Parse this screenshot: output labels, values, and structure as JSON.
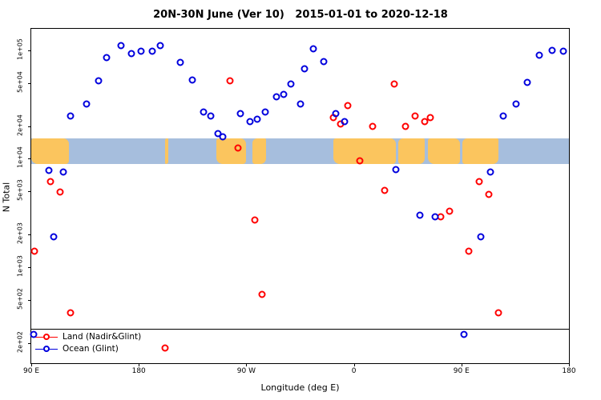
{
  "title": "20N-30N June (Ver 10)   2015-01-01 to 2020-12-18",
  "axes": {
    "x_label": "Longitude (deg E)",
    "y_label": "N Total"
  },
  "legend": {
    "items": [
      {
        "id": "land",
        "label": "Land (Nadir&Glint)",
        "color": "#ff0000"
      },
      {
        "id": "ocean",
        "label": "Ocean (Glint)",
        "color": "#0000dd"
      }
    ]
  },
  "chart_data": {
    "type": "scatter",
    "title": "20N-30N June (Ver 10)   2015-01-01 to 2020-12-18",
    "xlabel": "Longitude (deg E)",
    "ylabel": "N Total",
    "x_axis": {
      "range": [
        0,
        450
      ],
      "note": "degrees eastward along wrapped longitude axis starting at 90 E",
      "ticks": [
        {
          "pos": 0,
          "label": "90 E"
        },
        {
          "pos": 90,
          "label": "180"
        },
        {
          "pos": 180,
          "label": "90 W"
        },
        {
          "pos": 270,
          "label": "0"
        },
        {
          "pos": 360,
          "label": "90 E"
        },
        {
          "pos": 450,
          "label": "180"
        }
      ]
    },
    "y_axis": {
      "scale": "log",
      "range": [
        130,
        158000
      ],
      "ticks": [
        {
          "value": 100000,
          "label": "1e+05"
        },
        {
          "value": 50000,
          "label": "5e+04"
        },
        {
          "value": 20000,
          "label": "2e+04"
        },
        {
          "value": 10000,
          "label": "1e+04"
        },
        {
          "value": 5000,
          "label": "5e+03"
        },
        {
          "value": 2000,
          "label": "2e+03"
        },
        {
          "value": 1000,
          "label": "1e+03"
        },
        {
          "value": 500,
          "label": "5e+02"
        },
        {
          "value": 200,
          "label": "2e+02"
        }
      ]
    },
    "reference_line_y": 270,
    "map_band": {
      "y_range": [
        8900,
        15500
      ],
      "ocean_color": "#a6bedd",
      "land_color": "#fbc55e",
      "land_segments": [
        [
          0,
          7.0
        ],
        [
          24.9,
          25.5
        ],
        [
          34.4,
          40.0
        ],
        [
          41.2,
          43.6
        ],
        [
          56.2,
          67.8
        ],
        [
          68.3,
          73.2
        ],
        [
          73.8,
          79.8
        ],
        [
          80.2,
          86.9
        ]
      ]
    },
    "series": [
      {
        "id": "land",
        "name": "Land (Nadir&Glint)",
        "color": "#ff0000",
        "points": [
          [
            3,
            1400
          ],
          [
            16,
            6200
          ],
          [
            24,
            4900
          ],
          [
            33,
            380
          ],
          [
            112,
            180
          ],
          [
            166,
            52000
          ],
          [
            173,
            12500
          ],
          [
            187,
            2700
          ],
          [
            193,
            560
          ],
          [
            253,
            24000
          ],
          [
            259,
            21000
          ],
          [
            265,
            31000
          ],
          [
            275,
            9500
          ],
          [
            286,
            20000
          ],
          [
            296,
            5100
          ],
          [
            304,
            49000
          ],
          [
            313,
            20000
          ],
          [
            321,
            25000
          ],
          [
            329,
            22000
          ],
          [
            334,
            24000
          ],
          [
            343,
            2900
          ],
          [
            350,
            3300
          ],
          [
            366,
            1400
          ],
          [
            375,
            6200
          ],
          [
            383,
            4700
          ],
          [
            391,
            380
          ]
        ]
      },
      {
        "id": "ocean",
        "name": "Ocean (Glint)",
        "color": "#0000dd",
        "points": [
          [
            2,
            240
          ],
          [
            15,
            7800
          ],
          [
            19,
            1900
          ],
          [
            27,
            7500
          ],
          [
            33,
            25000
          ],
          [
            46,
            32000
          ],
          [
            56,
            52000
          ],
          [
            63,
            86000
          ],
          [
            75,
            110000
          ],
          [
            84,
            94000
          ],
          [
            92,
            98000
          ],
          [
            101,
            98000
          ],
          [
            108,
            110000
          ],
          [
            125,
            78000
          ],
          [
            135,
            53000
          ],
          [
            144,
            27000
          ],
          [
            150,
            25000
          ],
          [
            156,
            17000
          ],
          [
            160,
            16000
          ],
          [
            175,
            26000
          ],
          [
            183,
            22000
          ],
          [
            189,
            23000
          ],
          [
            196,
            27000
          ],
          [
            205,
            37000
          ],
          [
            211,
            39000
          ],
          [
            217,
            49000
          ],
          [
            225,
            32000
          ],
          [
            229,
            68000
          ],
          [
            236,
            103000
          ],
          [
            245,
            79000
          ],
          [
            255,
            26000
          ],
          [
            262,
            22000
          ],
          [
            305,
            8000
          ],
          [
            325,
            3000
          ],
          [
            338,
            2900
          ],
          [
            362,
            240
          ],
          [
            376,
            1900
          ],
          [
            384,
            7600
          ],
          [
            395,
            25000
          ],
          [
            406,
            32000
          ],
          [
            415,
            51000
          ],
          [
            425,
            90000
          ],
          [
            436,
            100000
          ],
          [
            445,
            98000
          ]
        ]
      }
    ]
  }
}
